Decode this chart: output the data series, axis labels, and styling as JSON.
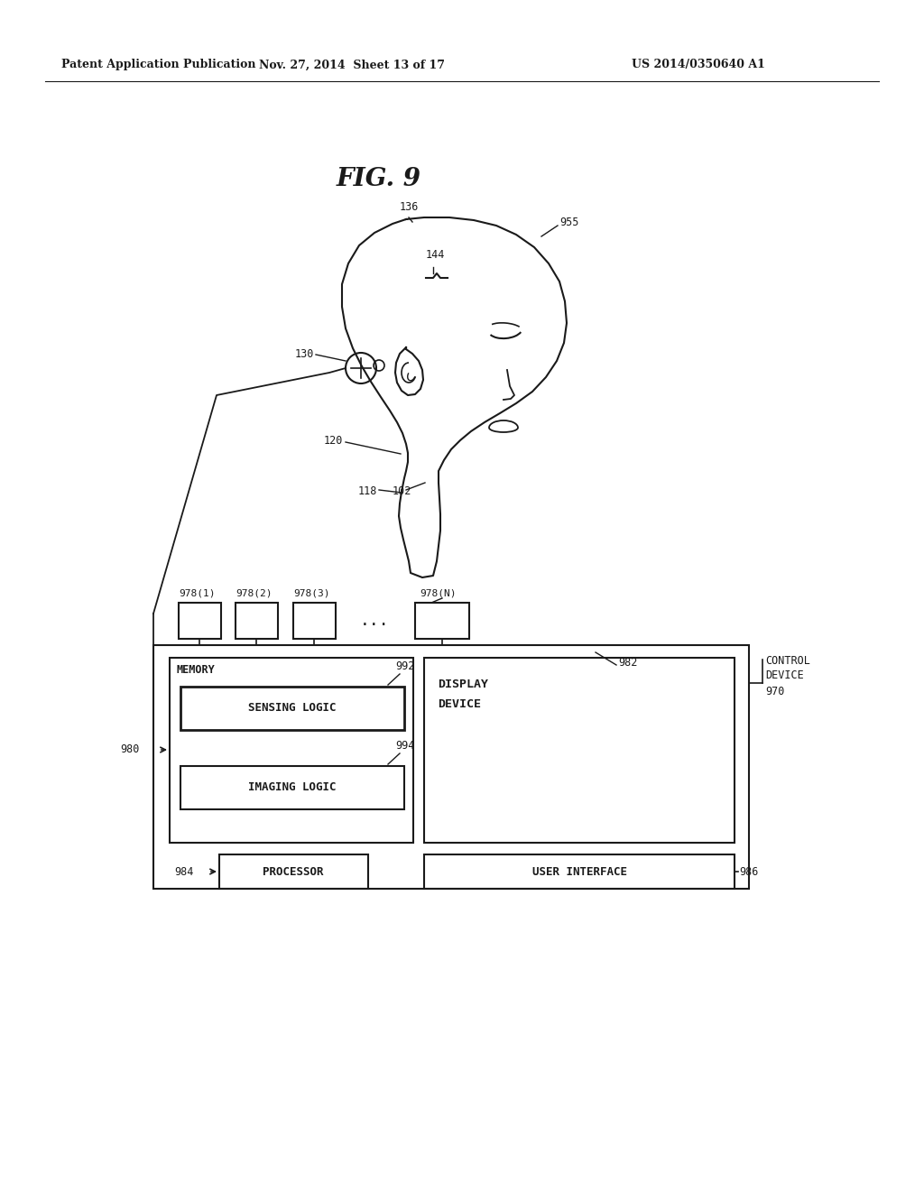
{
  "title": "FIG. 9",
  "header_left": "Patent Application Publication",
  "header_center": "Nov. 27, 2014  Sheet 13 of 17",
  "header_right": "US 2014/0350640 A1",
  "bg_color": "#ffffff",
  "line_color": "#1a1a1a",
  "font_color": "#1a1a1a"
}
